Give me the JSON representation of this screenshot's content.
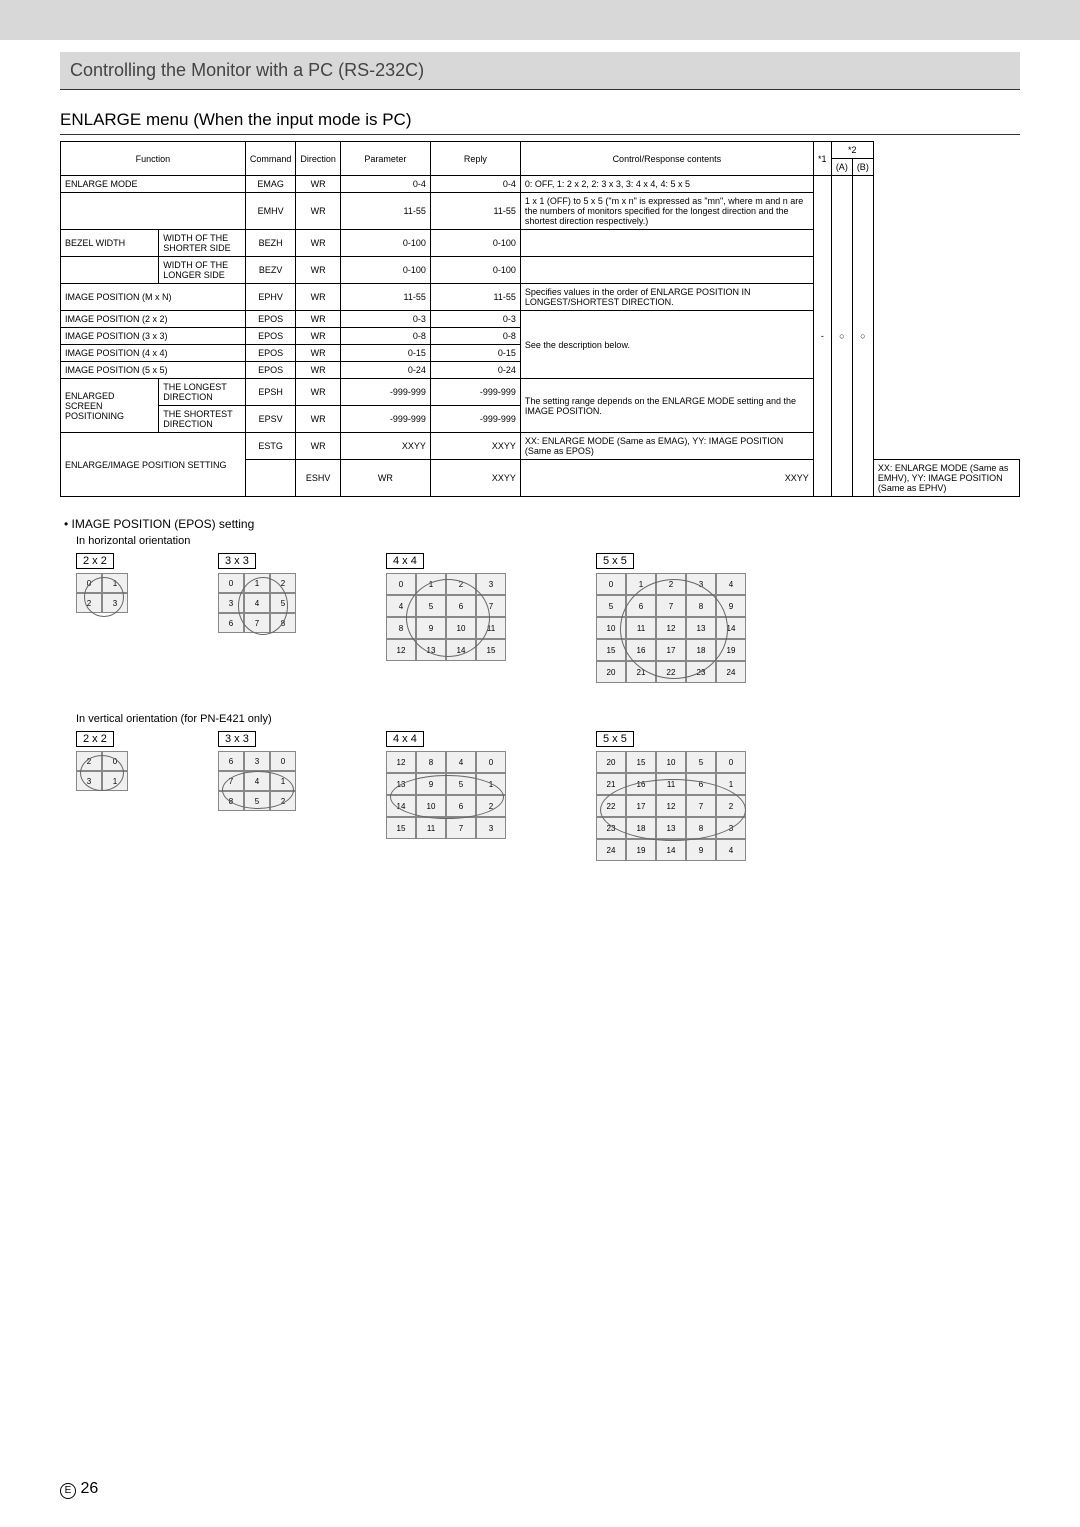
{
  "header": {
    "title": "Controlling the Monitor with a PC (RS-232C)"
  },
  "subsection": {
    "title": "ENLARGE menu (When the input mode is PC)"
  },
  "table": {
    "headers": {
      "function": "Function",
      "command": "Command",
      "direction": "Direction",
      "parameter": "Parameter",
      "reply": "Reply",
      "control": "Control/Response contents",
      "star1": "*1",
      "star2": "*2",
      "a": "(A)",
      "b": "(B)"
    },
    "rows": [
      {
        "f1": "ENLARGE MODE",
        "f2": "",
        "cmd": "EMAG",
        "dir": "WR",
        "param": "0-4",
        "reply": "0-4",
        "ctrl": "0: OFF, 1: 2 x 2, 2: 3 x 3, 3: 4 x 4, 4: 5 x 5"
      },
      {
        "f1": "",
        "f2": "",
        "cmd": "EMHV",
        "dir": "WR",
        "param": "11-55",
        "reply": "11-55",
        "ctrl": "1 x 1 (OFF) to 5 x 5 (\"m x n\" is expressed as \"mn\", where m and n are the numbers of monitors specified for the longest direction and the shortest direction respectively.)"
      },
      {
        "f1": "BEZEL WIDTH",
        "f2": "WIDTH OF THE SHORTER SIDE",
        "cmd": "BEZH",
        "dir": "WR",
        "param": "0-100",
        "reply": "0-100",
        "ctrl": ""
      },
      {
        "f1": "",
        "f2": "WIDTH OF THE LONGER SIDE",
        "cmd": "BEZV",
        "dir": "WR",
        "param": "0-100",
        "reply": "0-100",
        "ctrl": ""
      },
      {
        "f1": "IMAGE POSITION (M x N)",
        "f2": "",
        "cmd": "EPHV",
        "dir": "WR",
        "param": "11-55",
        "reply": "11-55",
        "ctrl": "Specifies values in the order of ENLARGE POSITION IN LONGEST/SHORTEST DIRECTION."
      },
      {
        "f1": "IMAGE POSITION (2 x 2)",
        "f2": "",
        "cmd": "EPOS",
        "dir": "WR",
        "param": "0-3",
        "reply": "0-3",
        "ctrl": "See the description below.",
        "rowspan_ctrl": 4
      },
      {
        "f1": "IMAGE POSITION (3 x 3)",
        "f2": "",
        "cmd": "EPOS",
        "dir": "WR",
        "param": "0-8",
        "reply": "0-8"
      },
      {
        "f1": "IMAGE POSITION (4 x 4)",
        "f2": "",
        "cmd": "EPOS",
        "dir": "WR",
        "param": "0-15",
        "reply": "0-15"
      },
      {
        "f1": "IMAGE POSITION (5 x 5)",
        "f2": "",
        "cmd": "EPOS",
        "dir": "WR",
        "param": "0-24",
        "reply": "0-24"
      },
      {
        "f1": "ENLARGED SCREEN POSITIONING",
        "f2": "THE LONGEST DIRECTION",
        "cmd": "EPSH",
        "dir": "WR",
        "param": "-999-999",
        "reply": "-999-999",
        "ctrl": "The setting range depends on the ENLARGE MODE setting and the IMAGE POSITION.",
        "rowspan_ctrl": 2,
        "rowspan_f1": 2
      },
      {
        "f2": "THE SHORTEST DIRECTION",
        "cmd": "EPSV",
        "dir": "WR",
        "param": "-999-999",
        "reply": "-999-999"
      },
      {
        "f1": "ENLARGE/IMAGE POSITION SETTING",
        "f2": "",
        "cmd": "ESTG",
        "dir": "WR",
        "param": "XXYY",
        "reply": "XXYY",
        "ctrl": "XX: ENLARGE MODE (Same as EMAG), YY: IMAGE POSITION (Same as EPOS)",
        "rowspan_f1": 2
      },
      {
        "f2": "",
        "cmd": "ESHV",
        "dir": "WR",
        "param": "XXYY",
        "reply": "XXYY",
        "ctrl": "XX: ENLARGE MODE (Same as EMHV), YY: IMAGE POSITION (Same as EPHV)"
      }
    ],
    "star1_val": "-",
    "a_val": "○",
    "b_val": "○"
  },
  "epos": {
    "bullet": "IMAGE POSITION (EPOS) setting",
    "horizontal": "In horizontal orientation",
    "vertical": "In vertical orientation (for PN-E421 only)",
    "labels": {
      "g2": "2 x 2",
      "g3": "3 x 3",
      "g4": "4 x 4",
      "g5": "5 x 5"
    },
    "h": {
      "g2": [
        [
          "0",
          "1"
        ],
        [
          "2",
          "3"
        ]
      ],
      "g3": [
        [
          "0",
          "1",
          "2"
        ],
        [
          "3",
          "4",
          "5"
        ],
        [
          "6",
          "7",
          "8"
        ]
      ],
      "g4": [
        [
          "0",
          "1",
          "2",
          "3"
        ],
        [
          "4",
          "5",
          "6",
          "7"
        ],
        [
          "8",
          "9",
          "10",
          "11"
        ],
        [
          "12",
          "13",
          "14",
          "15"
        ]
      ],
      "g5": [
        [
          "0",
          "1",
          "2",
          "3",
          "4"
        ],
        [
          "5",
          "6",
          "7",
          "8",
          "9"
        ],
        [
          "10",
          "11",
          "12",
          "13",
          "14"
        ],
        [
          "15",
          "16",
          "17",
          "18",
          "19"
        ],
        [
          "20",
          "21",
          "22",
          "23",
          "24"
        ]
      ]
    },
    "v": {
      "g2": [
        [
          "2",
          "0"
        ],
        [
          "3",
          "1"
        ]
      ],
      "g3": [
        [
          "6",
          "3",
          "0"
        ],
        [
          "7",
          "4",
          "1"
        ],
        [
          "8",
          "5",
          "2"
        ]
      ],
      "g4": [
        [
          "12",
          "8",
          "4",
          "0"
        ],
        [
          "13",
          "9",
          "5",
          "1"
        ],
        [
          "14",
          "10",
          "6",
          "2"
        ],
        [
          "15",
          "11",
          "7",
          "3"
        ]
      ],
      "g5": [
        [
          "20",
          "15",
          "10",
          "5",
          "0"
        ],
        [
          "21",
          "16",
          "11",
          "6",
          "1"
        ],
        [
          "22",
          "17",
          "12",
          "7",
          "2"
        ],
        [
          "23",
          "18",
          "13",
          "8",
          "3"
        ],
        [
          "24",
          "19",
          "14",
          "9",
          "4"
        ]
      ]
    }
  },
  "footer": {
    "e": "E",
    "page": "26"
  }
}
